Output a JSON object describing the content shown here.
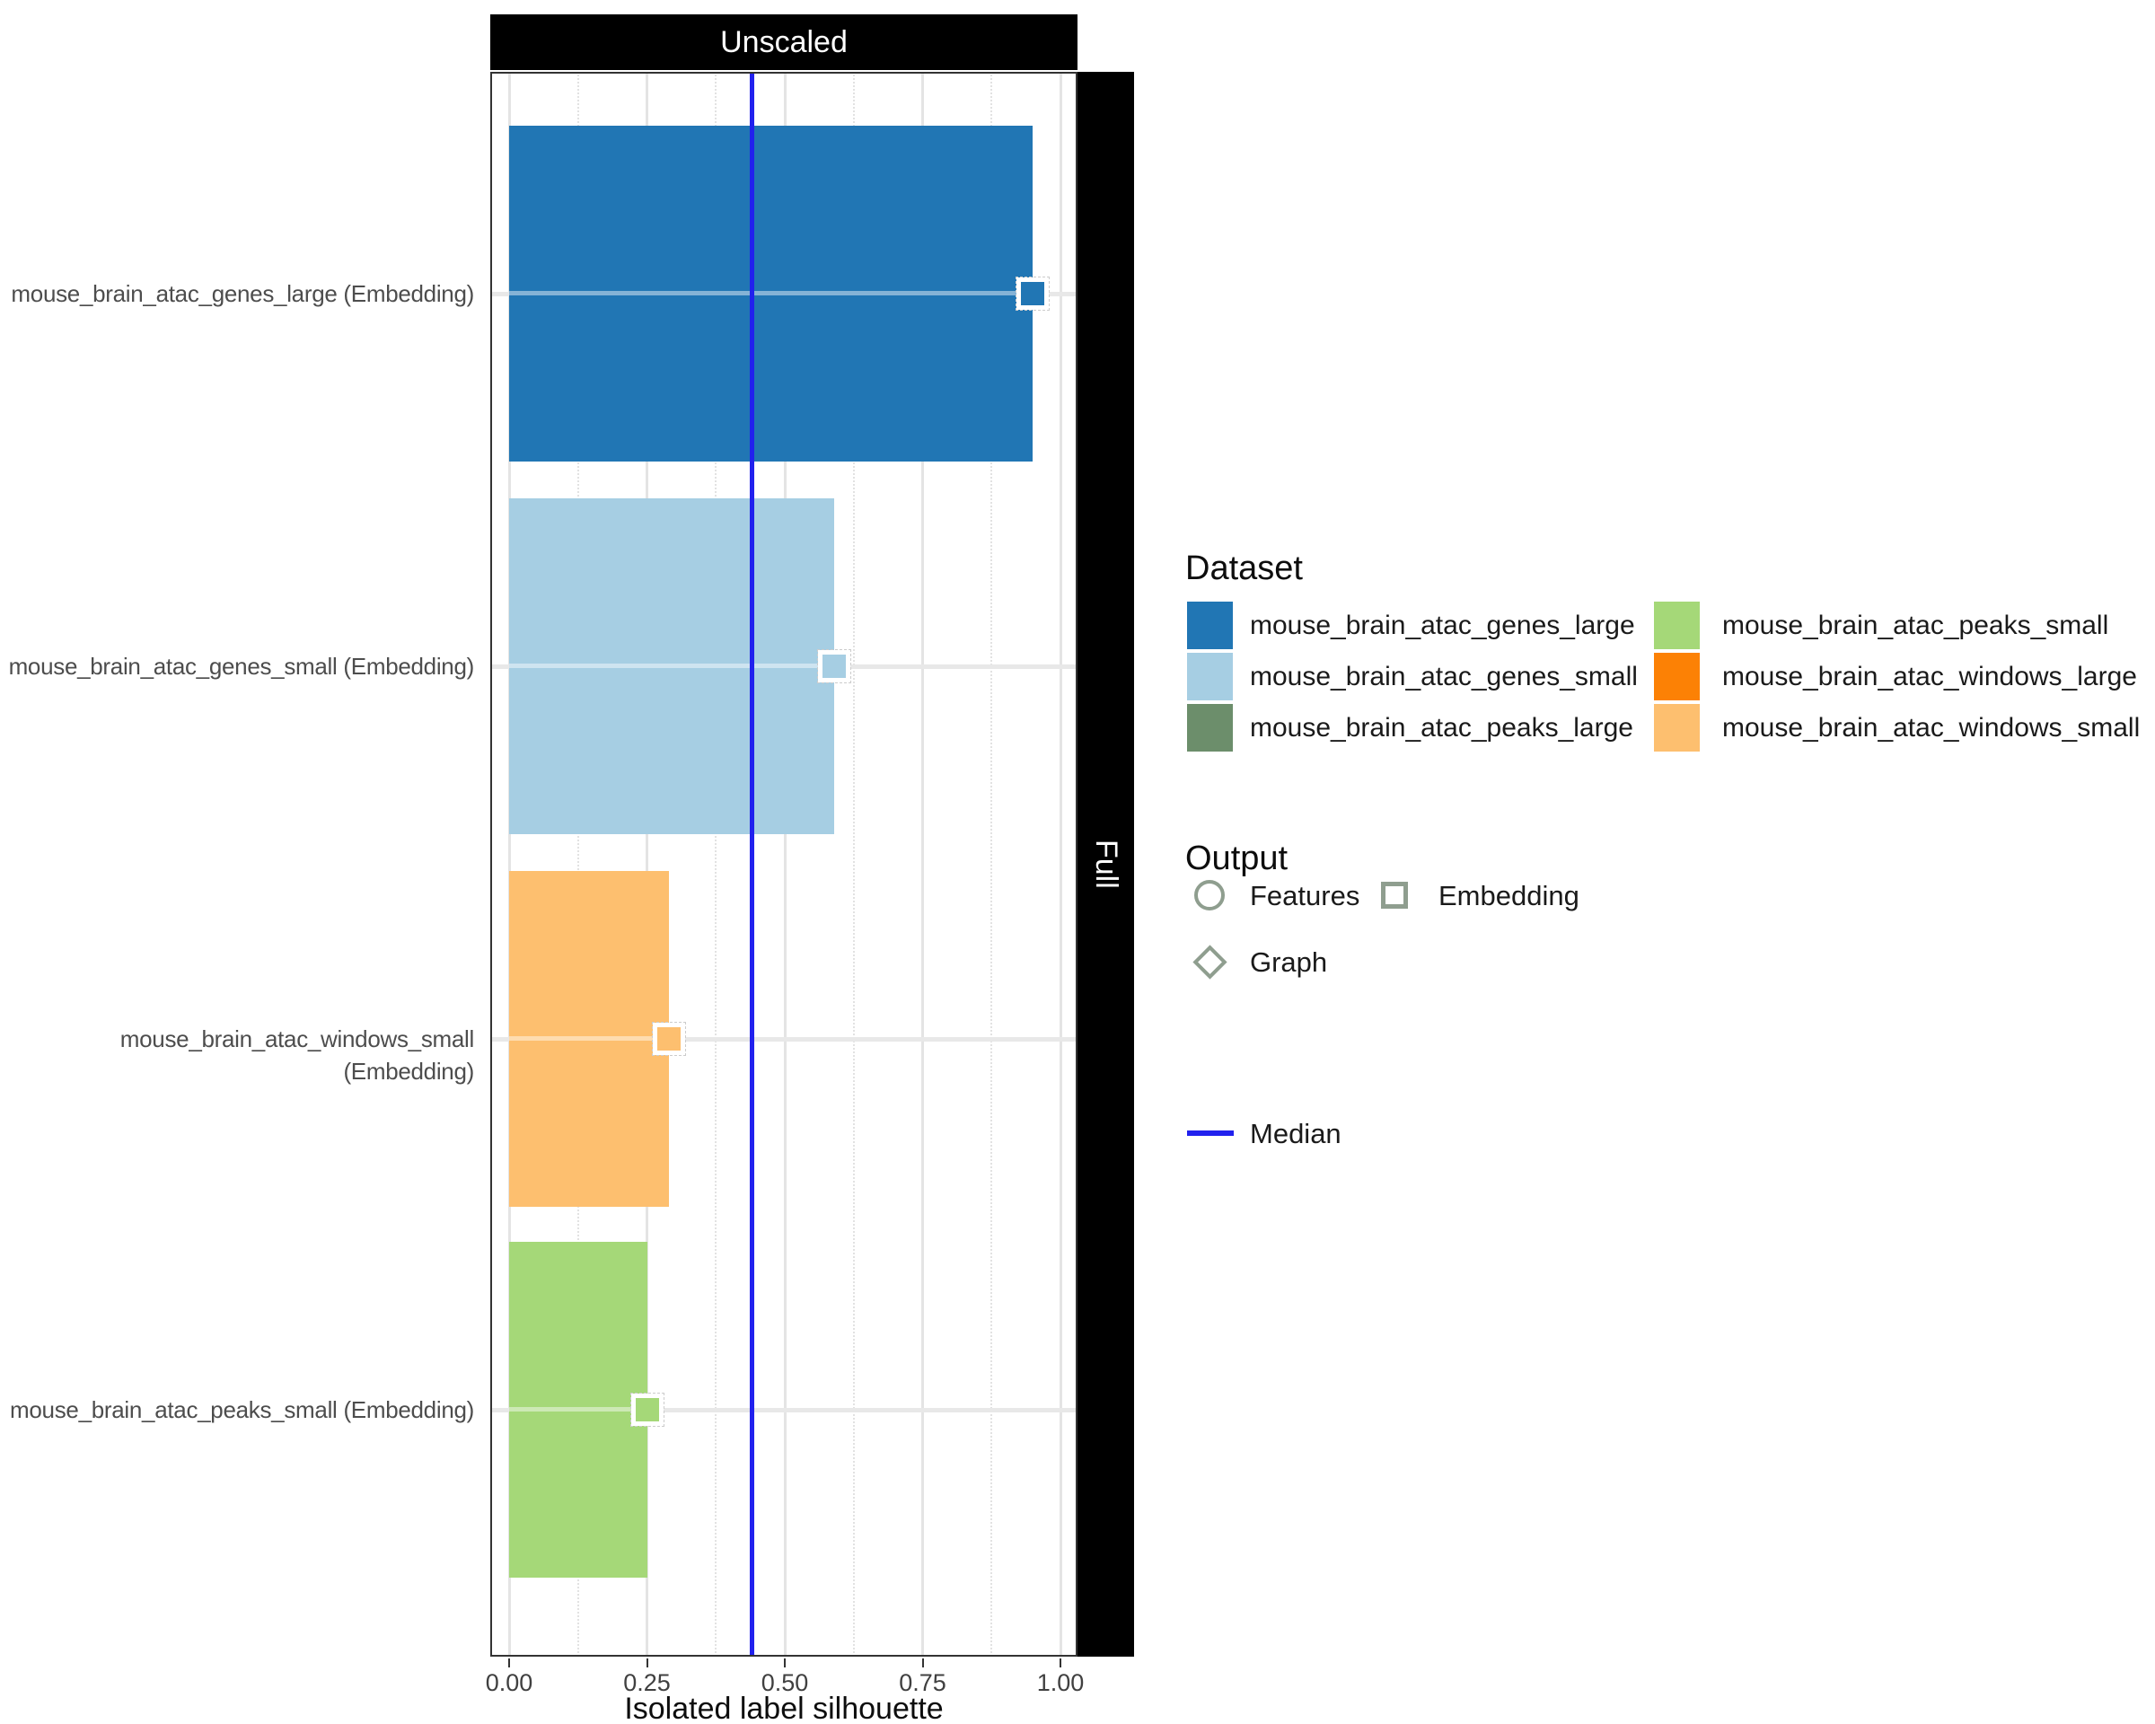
{
  "strips": {
    "top": "Unscaled",
    "right": "Full"
  },
  "chart_data": {
    "type": "bar",
    "orientation": "horizontal",
    "facet_column_label": "Unscaled",
    "facet_row_label": "Full",
    "xlabel": "Isolated label silhouette",
    "xlim": [
      -0.035,
      1.03
    ],
    "x_ticks": [
      0,
      0.25,
      0.5,
      0.75,
      1.0
    ],
    "x_tick_labels": [
      "0.00",
      "0.25",
      "0.50",
      "0.75",
      "1.00"
    ],
    "x_minor_ticks": [
      0.125,
      0.375,
      0.625,
      0.875
    ],
    "grid": true,
    "median": 0.44,
    "median_color": "#2121ee",
    "categories": [
      "mouse_brain_atac_genes_large (Embedding)",
      "mouse_brain_atac_genes_small (Embedding)",
      "mouse_brain_atac_windows_small (Embedding)",
      "mouse_brain_atac_peaks_small (Embedding)"
    ],
    "values": [
      0.95,
      0.59,
      0.29,
      0.25
    ],
    "rows": [
      {
        "label": "mouse_brain_atac_genes_large (Embedding)",
        "dataset": "mouse_brain_atac_genes_large",
        "output": "Embedding",
        "value": 0.95,
        "color": "#2176b4",
        "marker": "square"
      },
      {
        "label": "mouse_brain_atac_genes_small (Embedding)",
        "dataset": "mouse_brain_atac_genes_small",
        "output": "Embedding",
        "value": 0.59,
        "color": "#a6cee3",
        "marker": "square"
      },
      {
        "label": "mouse_brain_atac_windows_small (Embedding)",
        "dataset": "mouse_brain_atac_windows_small",
        "output": "Embedding",
        "value": 0.29,
        "color": "#fdbf6f",
        "marker": "square"
      },
      {
        "label": "mouse_brain_atac_peaks_small (Embedding)",
        "dataset": "mouse_brain_atac_peaks_small",
        "output": "Embedding",
        "value": 0.25,
        "color": "#a5d878",
        "marker": "square"
      }
    ]
  },
  "legend": {
    "dataset": {
      "title": "Dataset",
      "columns": [
        [
          {
            "label": "mouse_brain_atac_genes_large",
            "color": "#2176b4"
          },
          {
            "label": "mouse_brain_atac_genes_small",
            "color": "#a6cee3"
          },
          {
            "label": "mouse_brain_atac_peaks_large",
            "color": "#6c8e6b"
          }
        ],
        [
          {
            "label": "mouse_brain_atac_peaks_small",
            "color": "#a5d878"
          },
          {
            "label": "mouse_brain_atac_windows_large",
            "color": "#fc8105"
          },
          {
            "label": "mouse_brain_atac_windows_small",
            "color": "#fdbf6f"
          }
        ]
      ]
    },
    "output": {
      "title": "Output",
      "entries": [
        {
          "label": "Features",
          "shape": "circle"
        },
        {
          "label": "Embedding",
          "shape": "square"
        },
        {
          "label": "Graph",
          "shape": "diamond"
        }
      ]
    },
    "median": {
      "label": "Median",
      "color": "#2121ee"
    }
  }
}
